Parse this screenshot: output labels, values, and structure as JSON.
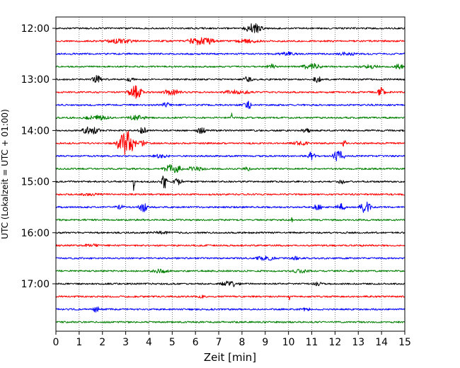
{
  "chart_data": {
    "type": "line",
    "title": "",
    "xlabel": "Zeit  [min]",
    "ylabel": "UTC (Lokalzeit = UTC + 01:00)",
    "xlim": [
      0,
      15
    ],
    "x_ticks": [
      "0",
      "1",
      "2",
      "3",
      "4",
      "5",
      "6",
      "7",
      "8",
      "9",
      "10",
      "11",
      "12",
      "13",
      "14",
      "15"
    ],
    "y_ticks": [
      {
        "label": "12:00",
        "trace": 0
      },
      {
        "label": "13:00",
        "trace": 4
      },
      {
        "label": "14:00",
        "trace": 8
      },
      {
        "label": "15:00",
        "trace": 12
      },
      {
        "label": "16:00",
        "trace": 16
      },
      {
        "label": "17:00",
        "trace": 20
      }
    ],
    "trace_interval_minutes": 15,
    "grid": "vertical dotted at each minute",
    "color_cycle": [
      "#000000",
      "#ff0000",
      "#0000ff",
      "#008000"
    ],
    "series": [
      {
        "values": [
          [
            8.0,
            9.0,
            1.0
          ]
        ]
      },
      {
        "values": [
          [
            2.0,
            3.5,
            0.4
          ],
          [
            5.5,
            7.0,
            0.8
          ],
          [
            7.5,
            9.0,
            0.3
          ]
        ]
      },
      {
        "values": [
          [
            9.5,
            10.5,
            0.3
          ],
          [
            12.0,
            13.0,
            0.25
          ]
        ]
      },
      {
        "values": [
          [
            9.0,
            9.5,
            0.5
          ],
          [
            10.5,
            11.5,
            0.6
          ],
          [
            13.0,
            14.0,
            0.3
          ],
          [
            14.5,
            15.0,
            0.5
          ]
        ]
      },
      {
        "values": [
          [
            1.5,
            2.0,
            0.8
          ],
          [
            3.0,
            3.5,
            0.4
          ],
          [
            8.0,
            8.5,
            0.5
          ],
          [
            11.0,
            11.5,
            0.6
          ]
        ]
      },
      {
        "values": [
          [
            3.0,
            3.8,
            1.4
          ],
          [
            4.5,
            5.5,
            0.5
          ],
          [
            7.0,
            8.5,
            0.4
          ],
          [
            13.8,
            14.2,
            1.0
          ]
        ]
      },
      {
        "values": [
          [
            8.0,
            8.5,
            0.8
          ],
          [
            4.5,
            5.0,
            0.4
          ]
        ]
      },
      {
        "values": [
          [
            1.0,
            2.5,
            0.4
          ],
          [
            3.0,
            4.0,
            0.4
          ],
          [
            7.5,
            7.6,
            2.0
          ]
        ]
      },
      {
        "values": [
          [
            1.0,
            2.0,
            0.7
          ],
          [
            3.5,
            4.0,
            0.6
          ],
          [
            6.0,
            6.5,
            0.6
          ],
          [
            10.5,
            11.0,
            0.4
          ]
        ]
      },
      {
        "values": [
          [
            2.5,
            3.5,
            2.8
          ],
          [
            3.5,
            4.0,
            0.6
          ],
          [
            12.3,
            12.5,
            0.8
          ],
          [
            10.0,
            11.0,
            0.3
          ]
        ]
      },
      {
        "values": [
          [
            4.0,
            5.0,
            0.3
          ],
          [
            10.8,
            11.2,
            0.8
          ],
          [
            11.8,
            12.5,
            1.0
          ]
        ]
      },
      {
        "values": [
          [
            4.5,
            5.5,
            0.9
          ],
          [
            5.5,
            6.5,
            0.4
          ],
          [
            8.0,
            8.5,
            0.3
          ]
        ]
      },
      {
        "values": [
          [
            3.3,
            3.4,
            2.0
          ],
          [
            4.5,
            4.8,
            1.6
          ],
          [
            5.0,
            5.5,
            0.6
          ],
          [
            12.0,
            12.5,
            0.4
          ]
        ]
      },
      {
        "values": [
          [
            1.0,
            2.0,
            0.2
          ]
        ]
      },
      {
        "values": [
          [
            3.5,
            4.0,
            1.0
          ],
          [
            2.5,
            3.0,
            0.4
          ],
          [
            11.0,
            11.5,
            0.6
          ],
          [
            12.0,
            12.5,
            0.8
          ],
          [
            13.0,
            13.6,
            1.2
          ]
        ]
      },
      {
        "values": [
          [
            10.1,
            10.2,
            0.8
          ]
        ]
      },
      {
        "values": [
          [
            4.0,
            5.0,
            0.2
          ]
        ]
      },
      {
        "values": [
          [
            1.0,
            2.0,
            0.2
          ]
        ]
      },
      {
        "values": [
          [
            8.5,
            9.5,
            0.4
          ],
          [
            10.0,
            10.5,
            0.3
          ]
        ]
      },
      {
        "values": [
          [
            4.0,
            5.0,
            0.3
          ],
          [
            10.0,
            11.0,
            0.3
          ]
        ]
      },
      {
        "values": [
          [
            7.0,
            8.0,
            0.5
          ],
          [
            11.0,
            11.5,
            0.3
          ]
        ]
      },
      {
        "values": [
          [
            10.0,
            10.1,
            0.7
          ],
          [
            6.0,
            6.5,
            0.2
          ]
        ]
      },
      {
        "values": [
          [
            1.5,
            2.0,
            0.5
          ],
          [
            10.5,
            11.0,
            0.3
          ]
        ]
      },
      {
        "values": []
      }
    ]
  }
}
